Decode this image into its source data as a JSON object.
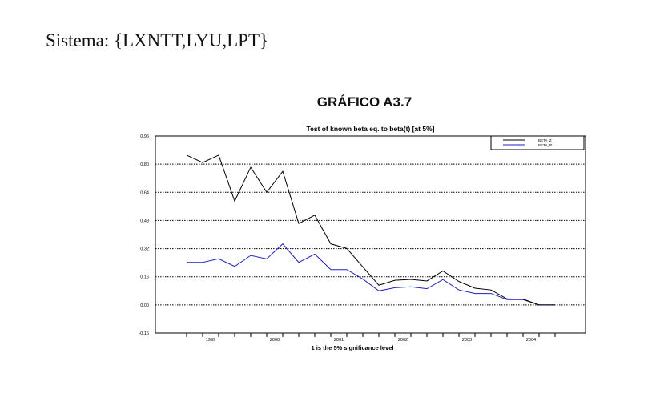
{
  "heading": "Sistema: {LXNTT,LYU,LPT}",
  "figure_title": "GRÁFICO A3.7",
  "chart_data": {
    "type": "line",
    "title": "Test of known beta eq. to beta(t) [at 5%]",
    "xlabel": "1 is the 5% significance level",
    "ylabel": "",
    "ylim": [
      -0.16,
      0.96
    ],
    "yticks": [
      -0.16,
      0.0,
      0.16,
      0.32,
      0.48,
      0.64,
      0.8,
      0.96
    ],
    "ytick_labels": [
      "-0.16",
      "0.00",
      "0.16",
      "0.32",
      "0.48",
      "0.64",
      "0.80",
      "0.96"
    ],
    "xtick_labels": [
      {
        "label": "1999",
        "at": 1.5
      },
      {
        "label": "2000",
        "at": 5.5
      },
      {
        "label": "2001",
        "at": 9.5
      },
      {
        "label": "2002",
        "at": 13.5
      },
      {
        "label": "2003",
        "at": 17.5
      },
      {
        "label": "2004",
        "at": 21.5
      }
    ],
    "grid": "horizontal dotted",
    "legend": "top-right",
    "series": [
      {
        "name": "BETA_Z",
        "color": "#000000",
        "values": [
          0.851,
          0.809,
          0.851,
          0.59,
          0.782,
          0.64,
          0.759,
          0.463,
          0.51,
          0.347,
          0.321,
          0.216,
          0.112,
          0.14,
          0.145,
          0.136,
          0.193,
          0.133,
          0.095,
          0.085,
          0.034,
          0.033,
          0.0,
          0.0
        ]
      },
      {
        "name": "BETA_R",
        "color": "#2020c0",
        "values": [
          0.242,
          0.242,
          0.262,
          0.219,
          0.281,
          0.262,
          0.347,
          0.242,
          0.289,
          0.201,
          0.201,
          0.147,
          0.08,
          0.098,
          0.103,
          0.092,
          0.144,
          0.085,
          0.065,
          0.065,
          0.03,
          0.03,
          0.0,
          0.0
        ]
      }
    ]
  }
}
